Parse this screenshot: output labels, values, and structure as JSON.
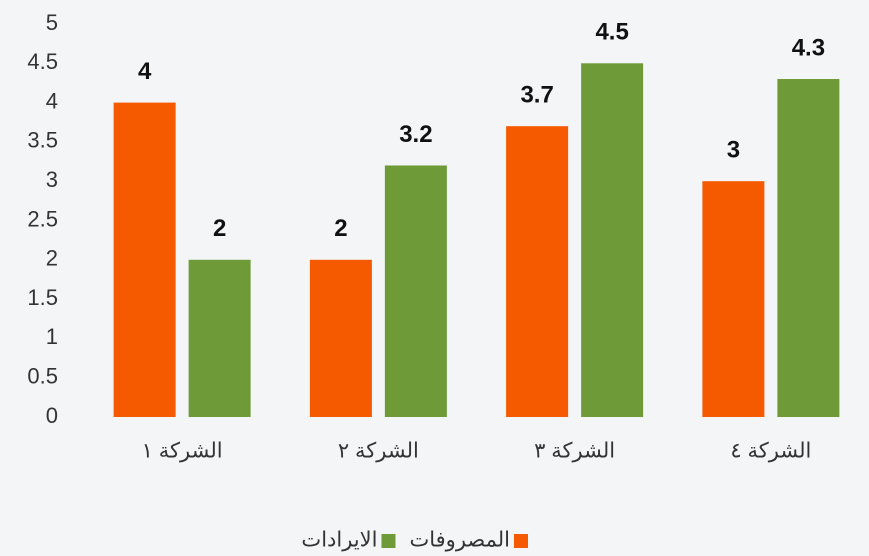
{
  "chart_data": {
    "type": "bar",
    "categories": [
      "الشركة ١",
      "الشركة ٢",
      "الشركة ٣",
      "الشركة ٤"
    ],
    "series": [
      {
        "name": "المصروفات",
        "color": "#f55a00",
        "values": [
          4,
          2,
          3.7,
          3
        ]
      },
      {
        "name": "الايرادات",
        "color": "#6e9a38",
        "values": [
          2,
          3.2,
          4.5,
          4.3
        ]
      }
    ],
    "ylim": [
      0,
      5
    ],
    "yticks": [
      0,
      0.5,
      1,
      1.5,
      2,
      2.5,
      3,
      3.5,
      4,
      4.5,
      5
    ],
    "grid": false
  }
}
